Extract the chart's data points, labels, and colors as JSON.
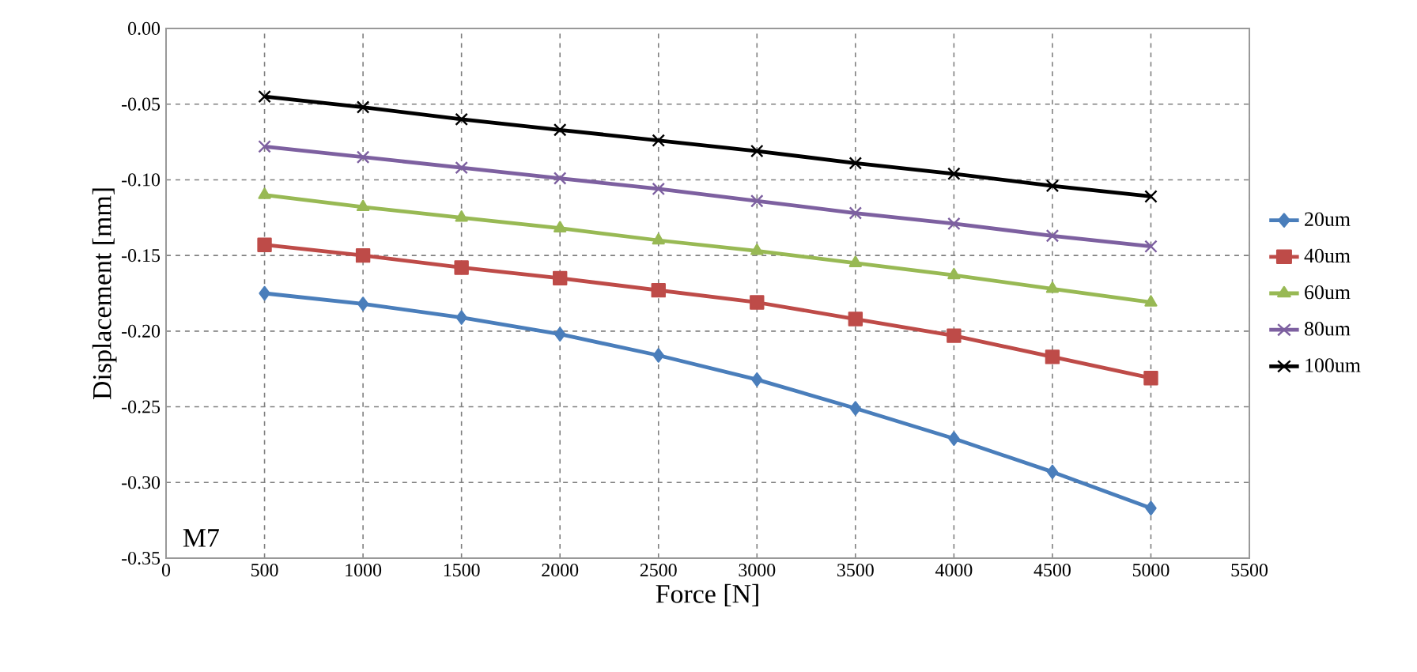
{
  "chart_data": {
    "type": "line",
    "xlabel": "Force [N]",
    "ylabel": "Displacement [mm]",
    "annotations": [
      "M7"
    ],
    "x": [
      500,
      1000,
      1500,
      2000,
      2500,
      3000,
      3500,
      4000,
      4500,
      5000
    ],
    "series": [
      {
        "name": "20um",
        "color": "#4a7ebb",
        "marker": "diamond",
        "values": [
          -0.175,
          -0.182,
          -0.191,
          -0.202,
          -0.216,
          -0.232,
          -0.251,
          -0.271,
          -0.293,
          -0.317
        ]
      },
      {
        "name": "40um",
        "color": "#be4b48",
        "marker": "square",
        "values": [
          -0.143,
          -0.15,
          -0.158,
          -0.165,
          -0.173,
          -0.181,
          -0.192,
          -0.203,
          -0.217,
          -0.231
        ]
      },
      {
        "name": "60um",
        "color": "#98b954",
        "marker": "triangle",
        "values": [
          -0.11,
          -0.118,
          -0.125,
          -0.132,
          -0.14,
          -0.147,
          -0.155,
          -0.163,
          -0.172,
          -0.181
        ]
      },
      {
        "name": "80um",
        "color": "#7d60a0",
        "marker": "cross",
        "values": [
          -0.078,
          -0.085,
          -0.092,
          -0.099,
          -0.106,
          -0.114,
          -0.122,
          -0.129,
          -0.137,
          -0.144
        ]
      },
      {
        "name": "100um",
        "color": "#000000",
        "marker": "cross",
        "values": [
          -0.045,
          -0.052,
          -0.06,
          -0.067,
          -0.074,
          -0.081,
          -0.089,
          -0.096,
          -0.104,
          -0.111
        ]
      }
    ],
    "xlim": [
      0,
      5500
    ],
    "xticks": [
      0,
      500,
      1000,
      1500,
      2000,
      2500,
      3000,
      3500,
      4000,
      4500,
      5000,
      5500
    ],
    "ylim": [
      -0.35,
      0.0
    ],
    "yticks": [
      {
        "value": -0.35,
        "label": "-0.35"
      },
      {
        "value": -0.3,
        "label": "-0.30"
      },
      {
        "value": -0.25,
        "label": "-0.25"
      },
      {
        "value": -0.2,
        "label": "-0.20"
      },
      {
        "value": -0.15,
        "label": "-0.15"
      },
      {
        "value": -0.1,
        "label": "-0.10"
      },
      {
        "value": -0.05,
        "label": "-0.05"
      },
      {
        "value": 0.0,
        "label": "0.00"
      }
    ],
    "grid": true,
    "legend": "right",
    "line_style": "solid"
  }
}
